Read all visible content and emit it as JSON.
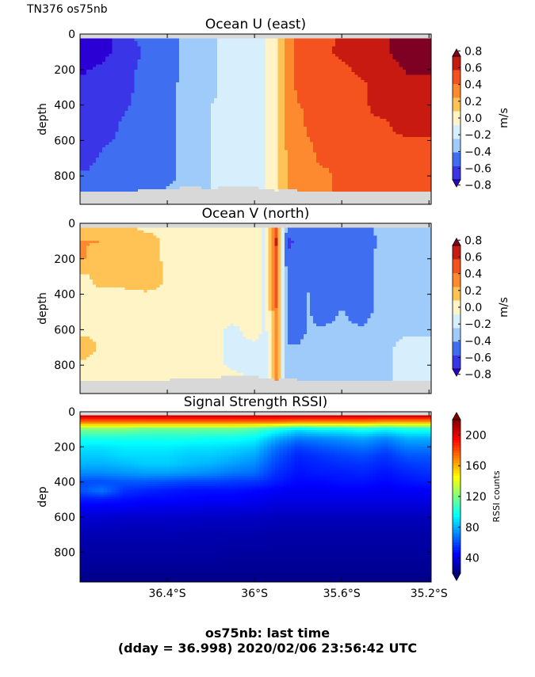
{
  "header": {
    "corner_label": "TN376 os75nb"
  },
  "footer": {
    "line1": "os75nb: last time",
    "line2": "(dday = 36.998) 2020/02/06 23:56:42 UTC"
  },
  "chart_data": [
    {
      "type": "heatmap",
      "title": "Ocean U (east)",
      "xlabel": "",
      "ylabel": "depth",
      "x_ticks": [
        "36.4°S",
        "36°S",
        "35.6°S",
        "35.2°S"
      ],
      "x_tick_values": [
        -36.4,
        -36.0,
        -35.6,
        -35.2
      ],
      "xlim": [
        -36.8,
        -35.19
      ],
      "ylim": [
        960,
        0
      ],
      "y_ticks": [
        0,
        200,
        400,
        600,
        800
      ],
      "colorbar": {
        "label": "m/s",
        "ticks": [
          "0.8",
          "0.6",
          "0.4",
          "0.2",
          "0.0",
          "−0.2",
          "−0.4",
          "−0.6",
          "−0.8"
        ],
        "tick_values": [
          0.8,
          0.6,
          0.4,
          0.2,
          0.0,
          -0.2,
          -0.4,
          -0.6,
          -0.8
        ],
        "range": [
          -0.9,
          0.9
        ],
        "colors": [
          "#2a00d4",
          "#3b35e8",
          "#3f6ff0",
          "#9ecbfa",
          "#d7eefc",
          "#fff4c6",
          "#ffc355",
          "#fd8a2e",
          "#f45320",
          "#c91a12",
          "#7e0124"
        ],
        "extend": "both"
      },
      "field": {
        "description_columns": "value vs latitude (x) and depth (y)",
        "x": [
          -36.78,
          -36.7,
          -36.6,
          -36.5,
          -36.4,
          -36.3,
          -36.2,
          -36.1,
          -36.0,
          -35.95,
          -35.9,
          -35.85,
          -35.8,
          -35.75,
          -35.7,
          -35.6,
          -35.5,
          -35.4,
          -35.3,
          -35.2
        ],
        "depth": [
          30,
          100,
          200,
          300,
          400,
          500,
          600,
          700,
          800,
          880
        ],
        "values": [
          [
            -0.85,
            -0.85,
            -0.6,
            -0.55,
            -0.5,
            -0.35,
            -0.3,
            -0.15,
            -0.15,
            -0.1,
            0.05,
            0.3,
            0.45,
            0.45,
            0.5,
            0.6,
            0.7,
            0.7,
            0.85,
            0.85
          ],
          [
            -0.85,
            -0.8,
            -0.65,
            -0.55,
            -0.5,
            -0.35,
            -0.3,
            -0.15,
            -0.15,
            -0.1,
            0.05,
            0.3,
            0.45,
            0.45,
            0.55,
            0.6,
            0.6,
            0.7,
            0.85,
            0.85
          ],
          [
            -0.75,
            -0.7,
            -0.6,
            -0.55,
            -0.5,
            -0.35,
            -0.3,
            -0.15,
            -0.15,
            -0.1,
            0.05,
            0.3,
            0.45,
            0.45,
            0.5,
            0.55,
            0.6,
            0.65,
            0.75,
            0.75
          ],
          [
            -0.7,
            -0.65,
            -0.6,
            -0.55,
            -0.45,
            -0.35,
            -0.3,
            -0.15,
            -0.15,
            -0.1,
            0.05,
            0.3,
            0.45,
            0.45,
            0.5,
            0.55,
            0.55,
            0.65,
            0.7,
            0.7
          ],
          [
            -0.7,
            -0.65,
            -0.6,
            -0.5,
            -0.45,
            -0.35,
            -0.25,
            -0.15,
            -0.15,
            -0.1,
            0.05,
            0.3,
            0.4,
            0.45,
            0.45,
            0.5,
            0.55,
            0.65,
            0.65,
            0.7
          ],
          [
            -0.7,
            -0.65,
            -0.55,
            -0.5,
            -0.45,
            -0.35,
            -0.25,
            -0.15,
            -0.15,
            -0.1,
            0.05,
            0.3,
            0.35,
            0.45,
            0.45,
            0.5,
            0.55,
            0.55,
            0.65,
            0.65
          ],
          [
            -0.65,
            -0.6,
            -0.55,
            -0.5,
            -0.45,
            -0.35,
            -0.25,
            -0.15,
            -0.15,
            -0.1,
            0.05,
            0.3,
            0.35,
            0.4,
            0.45,
            0.45,
            0.5,
            0.55,
            0.55,
            0.55
          ],
          [
            -0.65,
            -0.55,
            -0.5,
            -0.5,
            -0.45,
            -0.35,
            -0.25,
            -0.15,
            -0.15,
            -0.1,
            0.05,
            0.25,
            0.3,
            0.35,
            0.45,
            0.45,
            0.45,
            0.5,
            0.55,
            0.55
          ],
          [
            -0.55,
            -0.5,
            -0.5,
            -0.45,
            -0.45,
            -0.35,
            -0.25,
            -0.15,
            -0.15,
            -0.1,
            0.05,
            0.25,
            0.3,
            0.35,
            0.35,
            0.45,
            0.45,
            0.45,
            0.45,
            0.45
          ],
          [
            -0.55,
            -0.5,
            -0.5,
            -0.45,
            -0.4,
            -0.35,
            -0.25,
            -0.15,
            -0.15,
            -0.1,
            0.05,
            0.25,
            0.3,
            0.35,
            0.35,
            0.45,
            0.45,
            0.45,
            0.45,
            0.45
          ]
        ],
        "bottom_depth": [
          890,
          880,
          890,
          875,
          870,
          860,
          870,
          855,
          860,
          870,
          880,
          870,
          880,
          880,
          885,
          885,
          885,
          885,
          890,
          890
        ]
      }
    },
    {
      "type": "heatmap",
      "title": "Ocean V (north)",
      "xlabel": "",
      "ylabel": "depth",
      "x_ticks": [
        "36.4°S",
        "36°S",
        "35.6°S",
        "35.2°S"
      ],
      "x_tick_values": [
        -36.4,
        -36.0,
        -35.6,
        -35.2
      ],
      "xlim": [
        -36.8,
        -35.19
      ],
      "ylim": [
        960,
        0
      ],
      "y_ticks": [
        0,
        200,
        400,
        600,
        800
      ],
      "colorbar": {
        "label": "m/s",
        "ticks": [
          "0.8",
          "0.6",
          "0.4",
          "0.2",
          "0.0",
          "−0.2",
          "−0.4",
          "−0.6",
          "−0.8"
        ],
        "tick_values": [
          0.8,
          0.6,
          0.4,
          0.2,
          0.0,
          -0.2,
          -0.4,
          -0.6,
          -0.8
        ],
        "range": [
          -0.9,
          0.9
        ],
        "colors": [
          "#2a00d4",
          "#3b35e8",
          "#3f6ff0",
          "#9ecbfa",
          "#d7eefc",
          "#fff4c6",
          "#ffc355",
          "#fd8a2e",
          "#f45320",
          "#c91a12",
          "#7e0124"
        ],
        "extend": "both"
      },
      "field": {
        "x": [
          -36.78,
          -36.7,
          -36.6,
          -36.5,
          -36.4,
          -36.3,
          -36.2,
          -36.1,
          -36.0,
          -35.95,
          -35.9,
          -35.85,
          -35.8,
          -35.75,
          -35.7,
          -35.6,
          -35.5,
          -35.4,
          -35.3,
          -35.2
        ],
        "depth": [
          30,
          100,
          200,
          300,
          400,
          500,
          600,
          700,
          800,
          880
        ],
        "values": [
          [
            0.15,
            0.15,
            0.15,
            0.05,
            0.05,
            0.05,
            0.05,
            0.05,
            0.05,
            -0.15,
            0.5,
            -0.5,
            -0.55,
            -0.45,
            -0.55,
            -0.45,
            -0.5,
            -0.3,
            -0.35,
            -0.35
          ],
          [
            0.25,
            0.25,
            0.15,
            0.15,
            0.05,
            0.05,
            0.05,
            0.05,
            0.05,
            -0.15,
            0.6,
            -0.6,
            -0.55,
            -0.45,
            -0.55,
            -0.45,
            -0.5,
            -0.35,
            -0.35,
            -0.35
          ],
          [
            0.25,
            0.15,
            0.15,
            0.15,
            0.05,
            0.05,
            0.05,
            0.05,
            0.05,
            -0.15,
            0.5,
            -0.55,
            -0.55,
            -0.45,
            -0.5,
            -0.45,
            -0.45,
            -0.35,
            -0.35,
            -0.35
          ],
          [
            0.05,
            0.15,
            0.15,
            0.25,
            0.05,
            0.05,
            0.05,
            0.05,
            0.05,
            -0.15,
            0.45,
            -0.5,
            -0.5,
            -0.45,
            -0.45,
            -0.45,
            -0.45,
            -0.35,
            -0.35,
            -0.35
          ],
          [
            0.05,
            0.05,
            0.05,
            0.05,
            0.05,
            0.05,
            0.05,
            0.05,
            0.05,
            -0.15,
            0.45,
            -0.5,
            -0.5,
            -0.4,
            -0.45,
            -0.45,
            -0.45,
            -0.35,
            -0.35,
            -0.35
          ],
          [
            0.05,
            0.05,
            0.05,
            0.05,
            0.05,
            0.05,
            0.05,
            0.05,
            0.05,
            -0.15,
            0.4,
            -0.45,
            -0.45,
            -0.4,
            -0.45,
            -0.4,
            -0.45,
            -0.35,
            -0.35,
            -0.3
          ],
          [
            0.05,
            0.05,
            0.05,
            0.05,
            0.05,
            0.05,
            0.05,
            -0.15,
            0.05,
            -0.15,
            0.4,
            -0.45,
            -0.45,
            -0.4,
            -0.4,
            -0.4,
            -0.4,
            -0.35,
            -0.3,
            -0.3
          ],
          [
            0.15,
            0.05,
            0.05,
            0.05,
            0.05,
            0.05,
            0.05,
            -0.15,
            -0.15,
            -0.15,
            0.35,
            -0.4,
            -0.4,
            -0.35,
            -0.35,
            -0.35,
            -0.35,
            -0.3,
            -0.15,
            -0.15
          ],
          [
            0.05,
            0.05,
            0.05,
            0.05,
            0.05,
            0.05,
            0.05,
            -0.15,
            -0.15,
            -0.15,
            0.3,
            -0.35,
            -0.35,
            -0.35,
            -0.35,
            -0.35,
            -0.35,
            -0.3,
            -0.15,
            -0.15
          ],
          [
            0.05,
            0.05,
            0.05,
            0.05,
            0.05,
            0.05,
            0.05,
            0.05,
            -0.15,
            -0.15,
            0.3,
            -0.35,
            -0.35,
            -0.35,
            -0.35,
            -0.35,
            -0.35,
            -0.3,
            -0.15,
            -0.15
          ]
        ],
        "bottom_depth": [
          890,
          885,
          885,
          880,
          880,
          870,
          870,
          860,
          860,
          870,
          880,
          870,
          880,
          880,
          880,
          880,
          880,
          880,
          885,
          885
        ]
      }
    },
    {
      "type": "heatmap",
      "title": "Signal Strength RSSI)",
      "xlabel": "",
      "ylabel": "dep",
      "x_ticks": [
        "36.4°S",
        "36°S",
        "35.6°S",
        "35.2°S"
      ],
      "x_tick_values": [
        -36.4,
        -36.0,
        -35.6,
        -35.2
      ],
      "xlim": [
        -36.8,
        -35.19
      ],
      "ylim": [
        970,
        0
      ],
      "y_ticks": [
        0,
        200,
        400,
        600,
        800
      ],
      "colorbar": {
        "label": "RSSI counts",
        "ticks": [
          "200",
          "160",
          "120",
          "80",
          "40"
        ],
        "tick_values": [
          200,
          160,
          120,
          80,
          40
        ],
        "range": [
          20,
          220
        ],
        "colormap": "jet",
        "extend": "both"
      },
      "field": {
        "x": [
          -36.78,
          -36.7,
          -36.6,
          -36.5,
          -36.4,
          -36.3,
          -36.2,
          -36.1,
          -36.0,
          -35.9,
          -35.8,
          -35.7,
          -35.6,
          -35.5,
          -35.4,
          -35.3,
          -35.2
        ],
        "depth": [
          25,
          60,
          100,
          150,
          200,
          250,
          300,
          350,
          400,
          450,
          500,
          550,
          600,
          650,
          700,
          800,
          900,
          960
        ],
        "values": [
          [
            205,
            205,
            205,
            205,
            205,
            205,
            205,
            205,
            205,
            205,
            205,
            205,
            205,
            205,
            205,
            205,
            205
          ],
          [
            170,
            170,
            170,
            170,
            170,
            170,
            170,
            170,
            170,
            170,
            165,
            165,
            165,
            165,
            160,
            160,
            160
          ],
          [
            120,
            120,
            120,
            115,
            115,
            115,
            115,
            115,
            110,
            100,
            90,
            95,
            95,
            100,
            95,
            100,
            100
          ],
          [
            100,
            100,
            100,
            100,
            100,
            100,
            98,
            98,
            95,
            80,
            70,
            72,
            75,
            78,
            72,
            80,
            80
          ],
          [
            90,
            90,
            92,
            92,
            92,
            90,
            90,
            88,
            85,
            68,
            58,
            62,
            65,
            68,
            62,
            70,
            70
          ],
          [
            85,
            85,
            88,
            88,
            88,
            85,
            85,
            82,
            78,
            62,
            52,
            55,
            58,
            60,
            55,
            62,
            62
          ],
          [
            80,
            80,
            82,
            85,
            85,
            82,
            80,
            76,
            72,
            58,
            50,
            52,
            54,
            55,
            52,
            56,
            58
          ],
          [
            72,
            72,
            74,
            76,
            76,
            74,
            72,
            68,
            66,
            54,
            48,
            50,
            50,
            52,
            48,
            52,
            54
          ],
          [
            60,
            60,
            62,
            62,
            60,
            58,
            58,
            56,
            55,
            50,
            46,
            46,
            48,
            48,
            46,
            48,
            50
          ],
          [
            62,
            68,
            55,
            52,
            50,
            48,
            48,
            48,
            46,
            44,
            42,
            42,
            44,
            44,
            42,
            44,
            44
          ],
          [
            50,
            50,
            48,
            46,
            46,
            45,
            44,
            44,
            42,
            40,
            40,
            40,
            40,
            40,
            40,
            40,
            40
          ],
          [
            42,
            42,
            42,
            40,
            40,
            40,
            38,
            38,
            38,
            36,
            36,
            36,
            36,
            36,
            36,
            36,
            36
          ],
          [
            36,
            36,
            35,
            35,
            35,
            34,
            34,
            34,
            33,
            32,
            32,
            32,
            32,
            32,
            32,
            32,
            32
          ],
          [
            33,
            33,
            32,
            32,
            32,
            32,
            31,
            31,
            31,
            30,
            30,
            30,
            30,
            30,
            30,
            30,
            30
          ],
          [
            30,
            30,
            30,
            30,
            30,
            29,
            29,
            29,
            29,
            28,
            28,
            28,
            28,
            28,
            28,
            28,
            28
          ],
          [
            27,
            27,
            27,
            27,
            27,
            27,
            27,
            26,
            26,
            26,
            26,
            26,
            26,
            26,
            26,
            26,
            26
          ],
          [
            24,
            24,
            24,
            24,
            24,
            24,
            24,
            24,
            24,
            24,
            24,
            24,
            24,
            24,
            24,
            24,
            24
          ],
          [
            22,
            22,
            22,
            22,
            22,
            22,
            22,
            22,
            22,
            22,
            22,
            22,
            22,
            22,
            22,
            22,
            22
          ]
        ]
      }
    }
  ]
}
